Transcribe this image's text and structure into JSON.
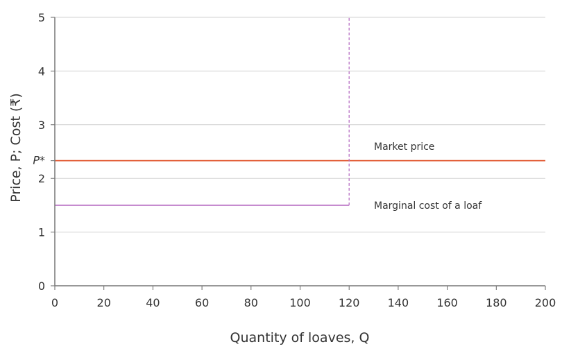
{
  "chart_data": {
    "type": "line",
    "xlabel": "Quantity of loaves, Q",
    "ylabel": "Price, P; Cost (₹)",
    "xlim": [
      0,
      200
    ],
    "ylim": [
      0,
      5
    ],
    "xticks": [
      "0",
      "20",
      "40",
      "60",
      "80",
      "100",
      "120",
      "140",
      "160",
      "180",
      "200"
    ],
    "yticks": [
      "0",
      "1",
      "2",
      "3",
      "4",
      "5"
    ],
    "grid": "horizontal",
    "extra_ytick": {
      "label": "P*",
      "value": 2.33
    },
    "series": [
      {
        "name": "Market price",
        "color": "#e0522a",
        "style": "solid",
        "x": [
          0,
          200
        ],
        "y": [
          2.33,
          2.33
        ]
      },
      {
        "name": "Marginal cost of a loaf",
        "color": "#b870c4",
        "style": "solid",
        "x": [
          0,
          120
        ],
        "y": [
          1.5,
          1.5
        ]
      },
      {
        "color": "#b870c4",
        "style": "dashed",
        "x": [
          120,
          120
        ],
        "y": [
          1.5,
          5
        ]
      }
    ],
    "annotations": [
      {
        "text": "Market price",
        "x": 130,
        "y": 2.6
      },
      {
        "text": "Marginal cost of a loaf",
        "x": 130,
        "y": 1.5
      }
    ]
  }
}
